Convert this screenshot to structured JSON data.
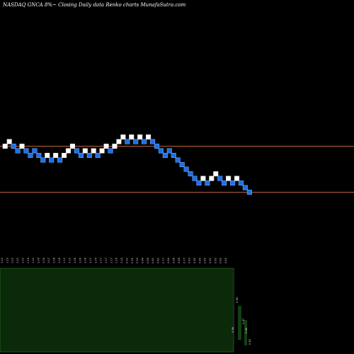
{
  "chart_data": {
    "type": "renko",
    "title": "NASDAQ GNCA 8%~   Closing Daily data  Renko  charts MunafaSutra.com",
    "colors": {
      "background": "#000000",
      "up_brick": "#ffffff",
      "down_brick": "#1f6fe5",
      "down_brick_border": "#66aaff",
      "reference_line": "#c0603a",
      "volume_area": "#0a2a0a",
      "volume_border": "#1f6a1f",
      "tick_text": "#cccccc"
    },
    "reference_lines": [
      1.08,
      0.9
    ],
    "bricks": [
      {
        "level": 0,
        "dir": "up"
      },
      {
        "level": 1,
        "dir": "up"
      },
      {
        "level": 0,
        "dir": "down"
      },
      {
        "level": -1,
        "dir": "down"
      },
      {
        "level": 0,
        "dir": "up"
      },
      {
        "level": -1,
        "dir": "down"
      },
      {
        "level": -2,
        "dir": "down"
      },
      {
        "level": -1,
        "dir": "down"
      },
      {
        "level": -2,
        "dir": "down"
      },
      {
        "level": -3,
        "dir": "down"
      },
      {
        "level": -2,
        "dir": "up"
      },
      {
        "level": -3,
        "dir": "down"
      },
      {
        "level": -2,
        "dir": "up"
      },
      {
        "level": -3,
        "dir": "down"
      },
      {
        "level": -2,
        "dir": "up"
      },
      {
        "level": -1,
        "dir": "up"
      },
      {
        "level": 0,
        "dir": "up"
      },
      {
        "level": -1,
        "dir": "down"
      },
      {
        "level": -2,
        "dir": "down"
      },
      {
        "level": -1,
        "dir": "up"
      },
      {
        "level": -2,
        "dir": "down"
      },
      {
        "level": -1,
        "dir": "up"
      },
      {
        "level": -2,
        "dir": "down"
      },
      {
        "level": -1,
        "dir": "up"
      },
      {
        "level": 0,
        "dir": "up"
      },
      {
        "level": -1,
        "dir": "down"
      },
      {
        "level": 0,
        "dir": "up"
      },
      {
        "level": 1,
        "dir": "up"
      },
      {
        "level": 2,
        "dir": "up"
      },
      {
        "level": 1,
        "dir": "down"
      },
      {
        "level": 2,
        "dir": "up"
      },
      {
        "level": 1,
        "dir": "down"
      },
      {
        "level": 2,
        "dir": "up"
      },
      {
        "level": 1,
        "dir": "down"
      },
      {
        "level": 2,
        "dir": "up"
      },
      {
        "level": 1,
        "dir": "down"
      },
      {
        "level": 0,
        "dir": "down"
      },
      {
        "level": -1,
        "dir": "down"
      },
      {
        "level": -2,
        "dir": "down"
      },
      {
        "level": -1,
        "dir": "down"
      },
      {
        "level": -2,
        "dir": "down"
      },
      {
        "level": -3,
        "dir": "down"
      },
      {
        "level": -4,
        "dir": "down"
      },
      {
        "level": -5,
        "dir": "down"
      },
      {
        "level": -6,
        "dir": "down"
      },
      {
        "level": -7,
        "dir": "down"
      },
      {
        "level": -8,
        "dir": "down"
      },
      {
        "level": -7,
        "dir": "up"
      },
      {
        "level": -8,
        "dir": "down"
      },
      {
        "level": -7,
        "dir": "up"
      },
      {
        "level": -6,
        "dir": "up"
      },
      {
        "level": -7,
        "dir": "down"
      },
      {
        "level": -8,
        "dir": "down"
      },
      {
        "level": -7,
        "dir": "up"
      },
      {
        "level": -8,
        "dir": "down"
      },
      {
        "level": -7,
        "dir": "up"
      },
      {
        "level": -8,
        "dir": "down"
      },
      {
        "level": -9,
        "dir": "down"
      },
      {
        "level": -10,
        "dir": "down"
      }
    ],
    "price_labels": [
      "1.22",
      "1.23",
      "1.22",
      "1.20",
      "1.20",
      "1.16",
      "1.10",
      "1.06",
      "1.06",
      "1.07",
      "1.08",
      "1.06",
      "1.12",
      "1.10",
      "1.06",
      "1.06",
      "1.06",
      "1.07",
      "1.04",
      "1.17",
      "1.17",
      "1.17",
      "1.16",
      "1.16",
      "0.91",
      "0.90",
      "0.90",
      "0.84",
      "0.85",
      "0.81",
      "0.82",
      "0.77",
      "0.84",
      "0.86",
      "0.86",
      "0.77",
      "0.83",
      "0.82",
      "0.80",
      "0.80",
      "0.82",
      "0.82",
      "0.82",
      "0.82"
    ],
    "volume_labels": [
      {
        "text": "0.89"
      },
      {
        "text": "0.86"
      },
      {
        "text": "0.87"
      },
      {
        "text": "0.86"
      },
      {
        "text": "0.82"
      }
    ]
  }
}
